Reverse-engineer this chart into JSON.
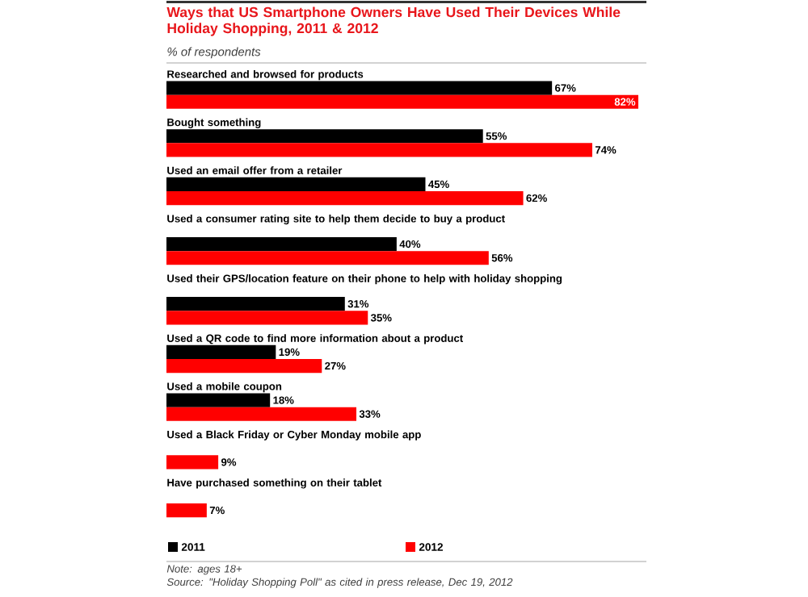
{
  "chart_data": {
    "type": "bar",
    "orientation": "horizontal",
    "title": "Ways that US Smartphone Owners Have Used Their Devices While Holiday Shopping, 2011 & 2012",
    "subtitle": "% of respondents",
    "categories": [
      "Researched and browsed for products",
      "Bought something",
      "Used an email offer from a retailer",
      "Used a consumer rating site to help them decide to buy a product",
      "Used their GPS/location feature on their phone to help with holiday shopping",
      "Used a QR code to find more information about a product",
      "Used a mobile coupon",
      "Used a Black Friday or Cyber Monday mobile app",
      "Have purchased something on their tablet"
    ],
    "series": [
      {
        "name": "2011",
        "color": "#000000",
        "values": [
          67,
          55,
          45,
          40,
          31,
          19,
          18,
          null,
          null
        ],
        "value_labels": [
          "67%",
          "55%",
          "45%",
          "40%",
          "31%",
          "19%",
          "18%",
          null,
          null
        ]
      },
      {
        "name": "2012",
        "color": "#ff0000",
        "values": [
          82,
          74,
          62,
          56,
          35,
          27,
          33,
          9,
          7
        ],
        "value_labels": [
          "82%",
          "74%",
          "62%",
          "56%",
          "35%",
          "27%",
          "33%",
          "9%",
          "7%"
        ]
      }
    ],
    "legend": "bottom",
    "annotations": [
      "Note: ages 18+",
      "Source: \"Holiday Shopping Poll\" as cited in press release, Dec 19, 2012"
    ]
  }
}
